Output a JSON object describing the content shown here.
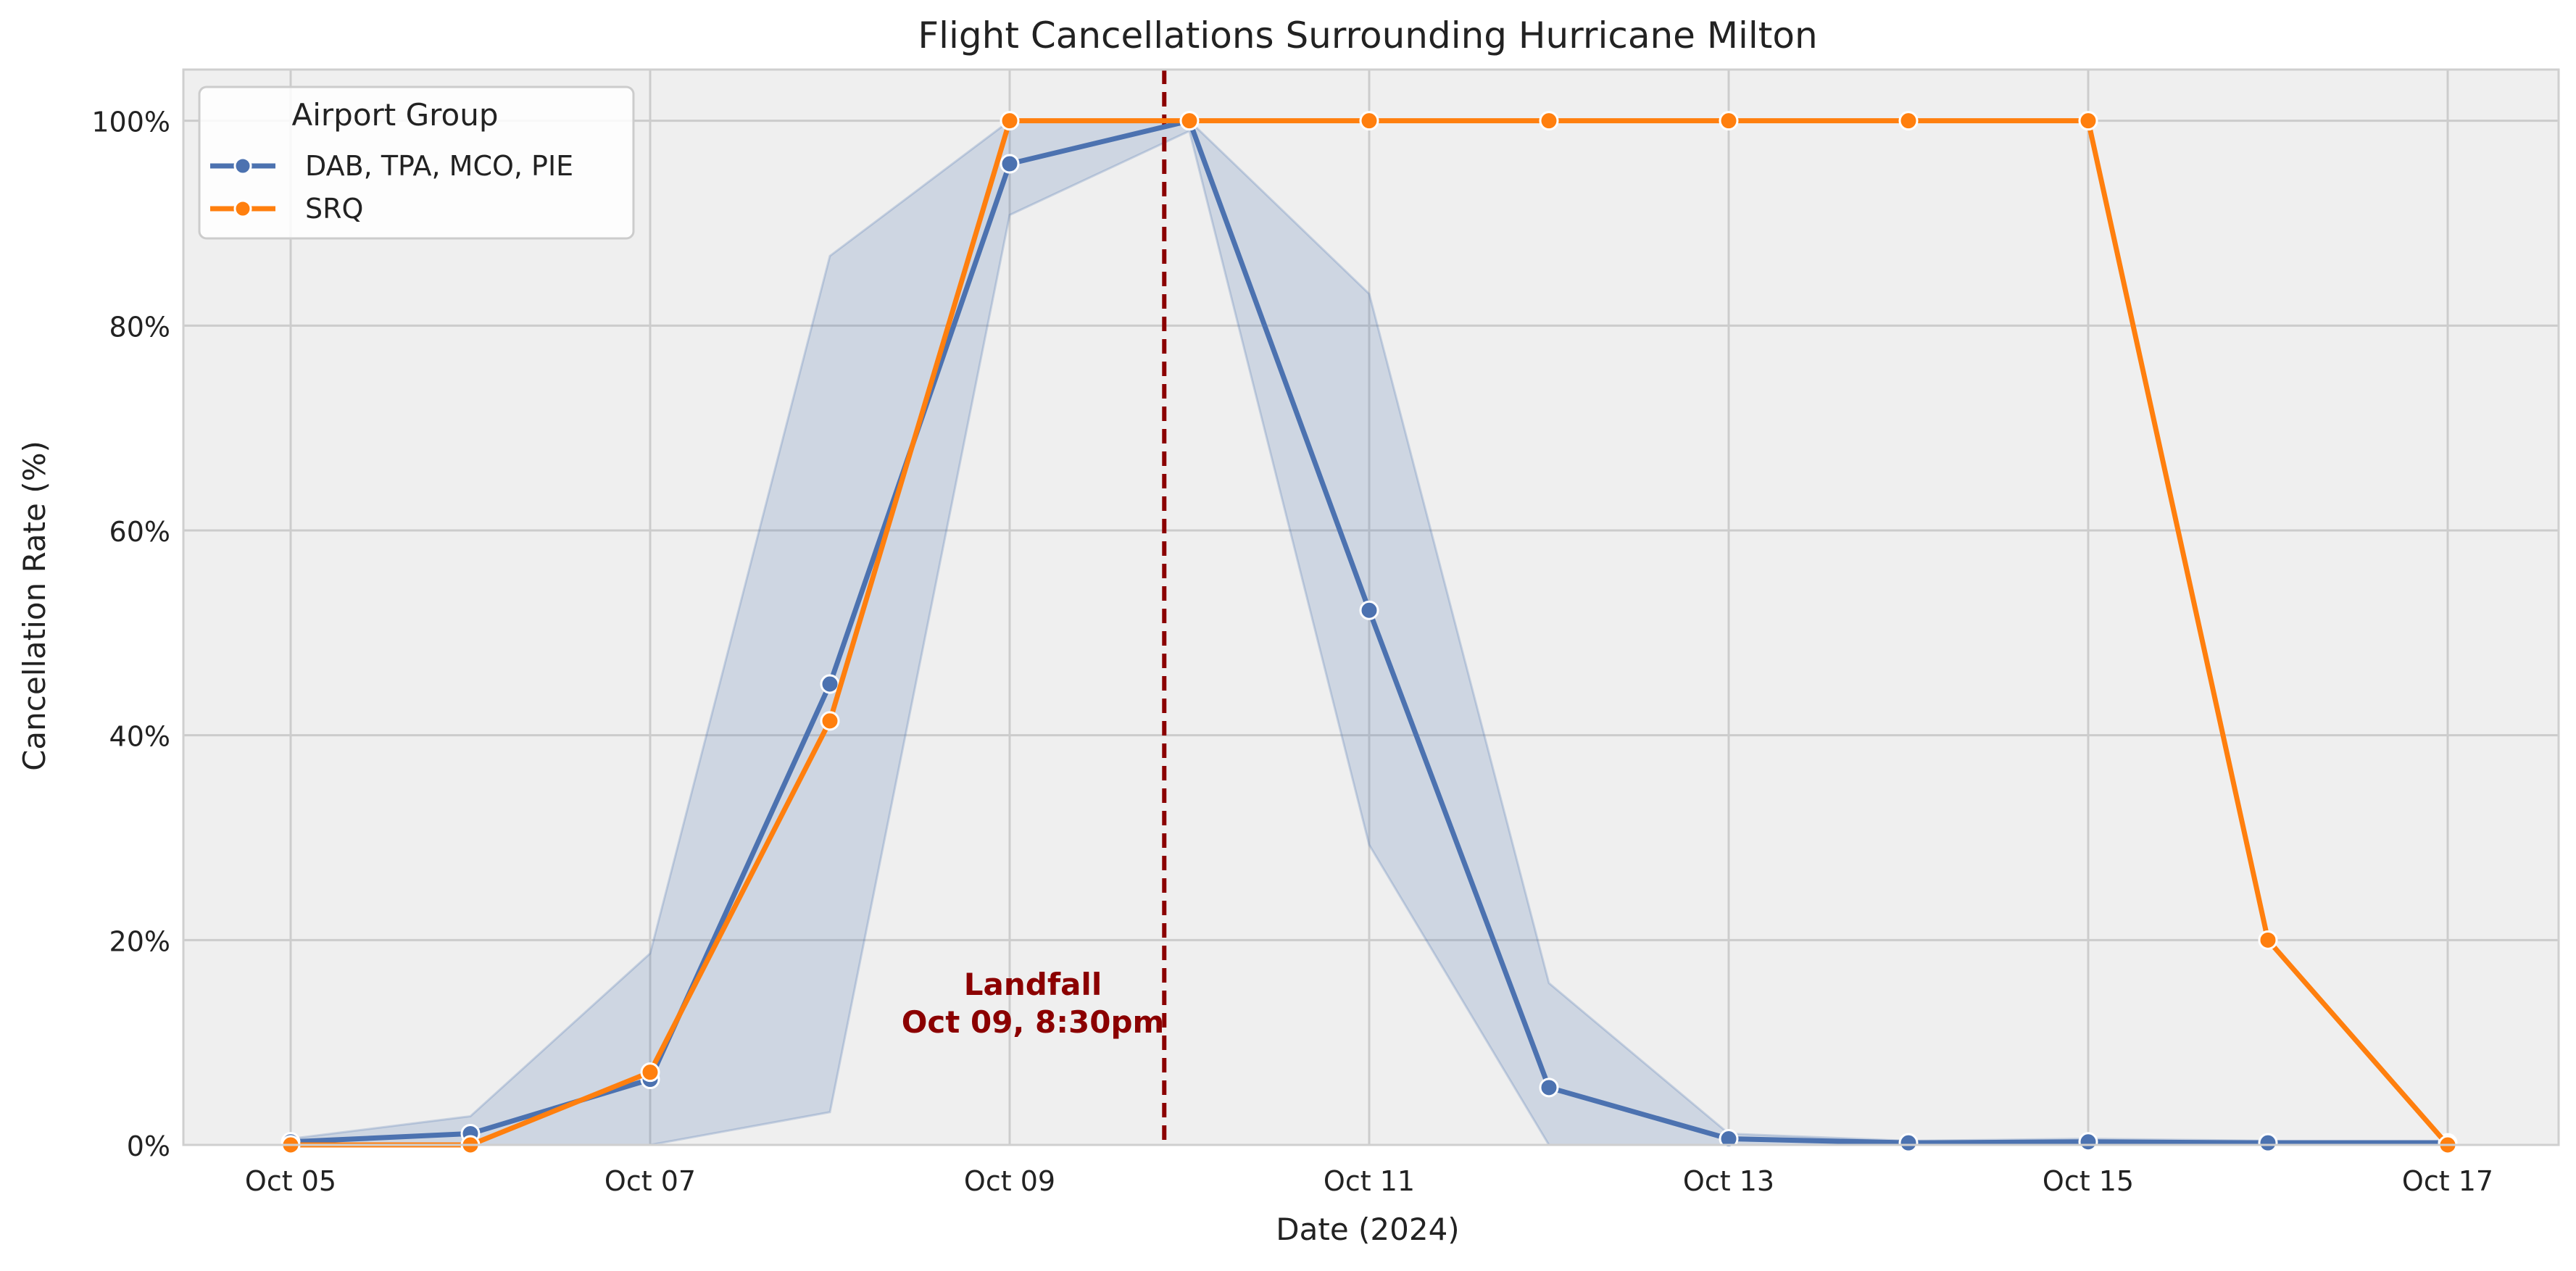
{
  "chart_data": {
    "type": "line",
    "title": "Flight Cancellations Surrounding Hurricane Milton",
    "xlabel": "Date (2024)",
    "ylabel": "Cancellation Rate (%)",
    "x": [
      "Oct 05",
      "Oct 06",
      "Oct 07",
      "Oct 08",
      "Oct 09",
      "Oct 10",
      "Oct 11",
      "Oct 12",
      "Oct 13",
      "Oct 14",
      "Oct 15",
      "Oct 16",
      "Oct 17"
    ],
    "x_tick_labels": [
      "Oct 05",
      "Oct 07",
      "Oct 09",
      "Oct 11",
      "Oct 13",
      "Oct 15",
      "Oct 17"
    ],
    "ylim": [
      0,
      105
    ],
    "y_ticks": [
      0,
      20,
      40,
      60,
      80,
      100
    ],
    "y_tick_labels": [
      "0%",
      "20%",
      "40%",
      "60%",
      "80%",
      "100%"
    ],
    "grid": true,
    "legend": {
      "title": "Airport Group",
      "placement": "top-left"
    },
    "series": [
      {
        "name": "DAB, TPA, MCO, PIE",
        "color": "#4c72b0",
        "values": [
          0.3,
          1.1,
          6.4,
          45.0,
          95.8,
          100.0,
          52.2,
          5.6,
          0.6,
          0.2,
          0.3,
          0.2,
          0.2
        ],
        "band_lower": [
          0.0,
          0.0,
          0.0,
          3.2,
          90.8,
          99.0,
          29.3,
          0.0,
          0.0,
          0.0,
          0.0,
          0.0,
          0.0
        ],
        "band_upper": [
          0.6,
          2.8,
          18.7,
          86.8,
          100.0,
          100.0,
          83.1,
          15.8,
          1.1,
          0.4,
          0.6,
          0.4,
          0.4
        ]
      },
      {
        "name": "SRQ",
        "color": "#ff7f0e",
        "values": [
          0.0,
          0.0,
          7.1,
          41.4,
          100.0,
          100.0,
          100.0,
          100.0,
          100.0,
          100.0,
          100.0,
          20.0,
          0.0
        ]
      }
    ],
    "annotations": [
      {
        "type": "vline",
        "x_day_fraction": 9.86,
        "color": "#8b0000",
        "style": "dashed"
      },
      {
        "type": "text",
        "lines": [
          "Landfall",
          "Oct 09, 8:30pm"
        ],
        "color": "#8b0000"
      }
    ]
  }
}
